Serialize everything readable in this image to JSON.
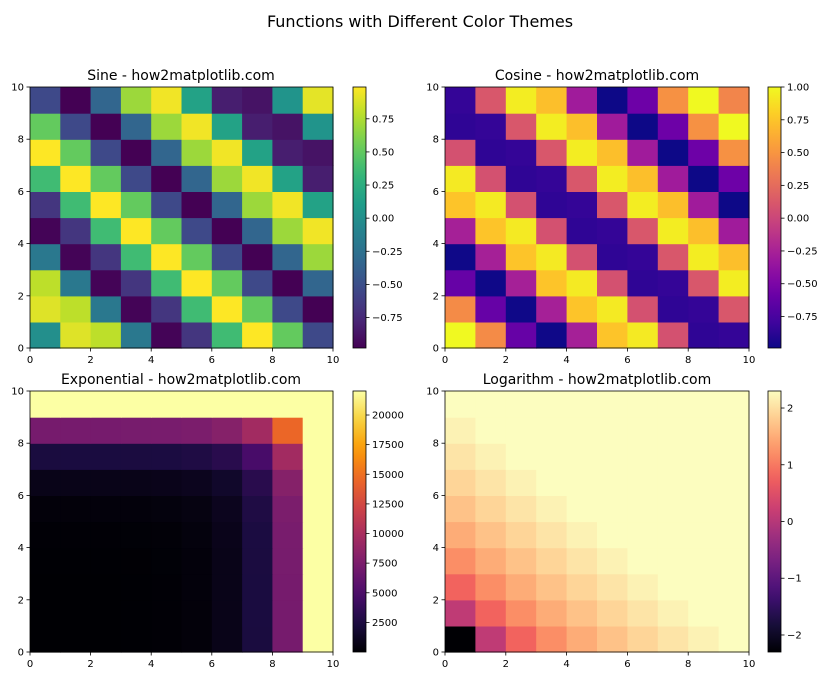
{
  "figure": {
    "title": "Functions with Different Color Themes"
  },
  "chart_data": [
    {
      "type": "heatmap",
      "title": "Sine - how2matplotlib.com",
      "function": "sin(x+y)",
      "colormap": "viridis",
      "xlim": [
        0,
        10
      ],
      "ylim": [
        0,
        10
      ],
      "xticks": [
        0,
        2,
        4,
        6,
        8,
        10
      ],
      "yticks": [
        0,
        2,
        4,
        6,
        8,
        10
      ],
      "vmin": -0.98,
      "vmax": 0.99,
      "colorbar_ticks": [
        0.75,
        0.5,
        0.25,
        0.0,
        -0.25,
        -0.5,
        -0.75
      ],
      "colorbar_labels": [
        "0.75",
        "0.50",
        "0.25",
        "0.00",
        "−0.25",
        "−0.50",
        "−0.75"
      ]
    },
    {
      "type": "heatmap",
      "title": "Cosine - how2matplotlib.com",
      "function": "cos(x+y)",
      "colormap": "plasma",
      "xlim": [
        0,
        10
      ],
      "ylim": [
        0,
        10
      ],
      "xticks": [
        0,
        2,
        4,
        6,
        8,
        10
      ],
      "yticks": [
        0,
        2,
        4,
        6,
        8,
        10
      ],
      "vmin": -0.99,
      "vmax": 1.0,
      "colorbar_ticks": [
        1.0,
        0.75,
        0.5,
        0.25,
        0.0,
        -0.25,
        -0.5,
        -0.75
      ],
      "colorbar_labels": [
        "1.00",
        "0.75",
        "0.50",
        "0.25",
        "0.00",
        "−0.25",
        "−0.50",
        "−0.75"
      ]
    },
    {
      "type": "heatmap",
      "title": "Exponential - how2matplotlib.com",
      "function": "exp(x)+exp(y)",
      "colormap": "inferno",
      "xlim": [
        0,
        10
      ],
      "ylim": [
        0,
        10
      ],
      "xticks": [
        0,
        2,
        4,
        6,
        8,
        10
      ],
      "yticks": [
        0,
        2,
        4,
        6,
        8,
        10
      ],
      "vmin": 2,
      "vmax": 22026,
      "colorbar_ticks": [
        20000,
        17500,
        15000,
        12500,
        10000,
        7500,
        5000,
        2500
      ],
      "colorbar_labels": [
        "20000",
        "17500",
        "15000",
        "12500",
        "10000",
        "7500",
        "5000",
        "2500"
      ]
    },
    {
      "type": "heatmap",
      "title": "Logarithm - how2matplotlib.com",
      "function": "log(x+y)",
      "colormap": "magma",
      "xlim": [
        0,
        10
      ],
      "ylim": [
        0,
        10
      ],
      "xticks": [
        0,
        2,
        4,
        6,
        8,
        10
      ],
      "yticks": [
        0,
        2,
        4,
        6,
        8,
        10
      ],
      "vmin": -2.3,
      "vmax": 2.3,
      "colorbar_ticks": [
        2,
        1,
        0,
        -1,
        -2
      ],
      "colorbar_labels": [
        "2",
        "1",
        "0",
        "−1",
        "−2"
      ]
    }
  ]
}
